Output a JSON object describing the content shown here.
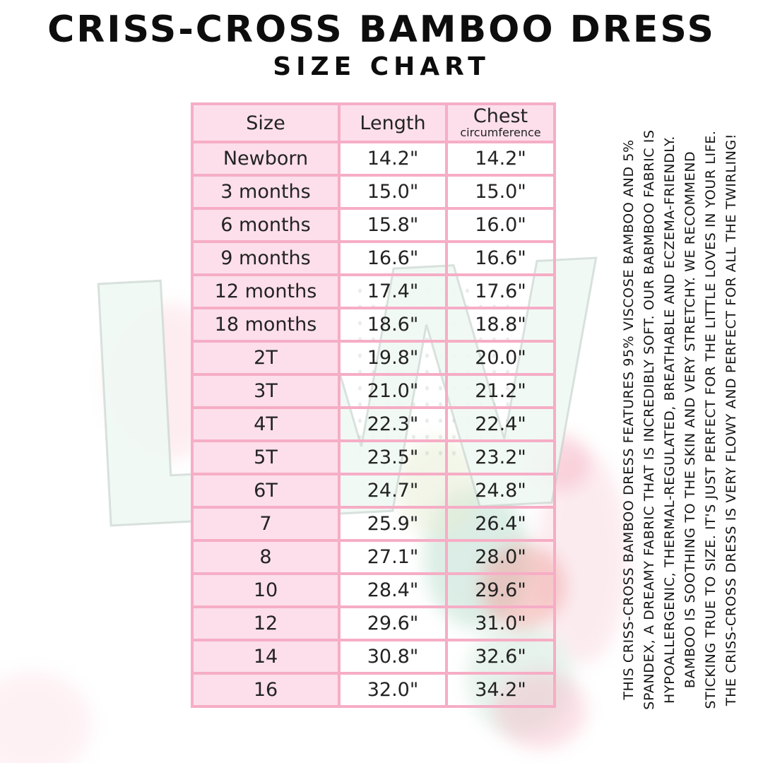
{
  "title": "CRISS-CROSS BAMBOO DRESS",
  "subtitle": "SIZE CHART",
  "table": {
    "columns": [
      "Size",
      "Length",
      "Chest"
    ],
    "chest_subline": "circumference",
    "rows": [
      {
        "size": "Newborn",
        "length": "14.2\"",
        "chest": "14.2\""
      },
      {
        "size": "3 months",
        "length": "15.0\"",
        "chest": "15.0\""
      },
      {
        "size": "6 months",
        "length": "15.8\"",
        "chest": "16.0\""
      },
      {
        "size": "9 months",
        "length": "16.6\"",
        "chest": "16.6\""
      },
      {
        "size": "12 months",
        "length": "17.4\"",
        "chest": "17.6\""
      },
      {
        "size": "18 months",
        "length": "18.6\"",
        "chest": "18.8\""
      },
      {
        "size": "2T",
        "length": "19.8\"",
        "chest": "20.0\""
      },
      {
        "size": "3T",
        "length": "21.0\"",
        "chest": "21.2\""
      },
      {
        "size": "4T",
        "length": "22.3\"",
        "chest": "22.4\""
      },
      {
        "size": "5T",
        "length": "23.5\"",
        "chest": "23.2\""
      },
      {
        "size": "6T",
        "length": "24.7\"",
        "chest": "24.8\""
      },
      {
        "size": "7",
        "length": "25.9\"",
        "chest": "26.4\""
      },
      {
        "size": "8",
        "length": "27.1\"",
        "chest": "28.0\""
      },
      {
        "size": "10",
        "length": "28.4\"",
        "chest": "29.6\""
      },
      {
        "size": "12",
        "length": "29.6\"",
        "chest": "31.0\""
      },
      {
        "size": "14",
        "length": "30.8\"",
        "chest": "32.6\""
      },
      {
        "size": "16",
        "length": "32.0\"",
        "chest": "34.2\""
      }
    ]
  },
  "side_note": {
    "lines": [
      "THIS CRISS-CROSS BAMBOO DRESS FEATURES 95% VISCOSE BAMBOO AND 5%",
      "SPANDEX, A DREAMY FABRIC THAT IS INCREDIBLY SOFT. OUR BABMBOO FABRIC IS",
      "HYPOALLERGENIC, THERMAL-REGULATED, BREATHABLE AND ECZEMA-FRIENDLY.",
      "BAMBOO IS SOOTHING TO THE SKIN AND VERY STRETCHY. WE RECOMMEND",
      "STICKING TRUE TO SIZE. IT'S JUST PERFECT FOR THE LITTLE LOVES IN YOUR LIFE.",
      "THE CRISS-CROSS DRESS IS VERY FLOWY AND PERFECT FOR ALL THE TWIRLING!"
    ]
  },
  "watermark": {
    "monogram": "LW"
  },
  "colors": {
    "border_pink": "#f6adc6",
    "cell_pink": "#fcdfea",
    "text": "#1f1f1f"
  }
}
